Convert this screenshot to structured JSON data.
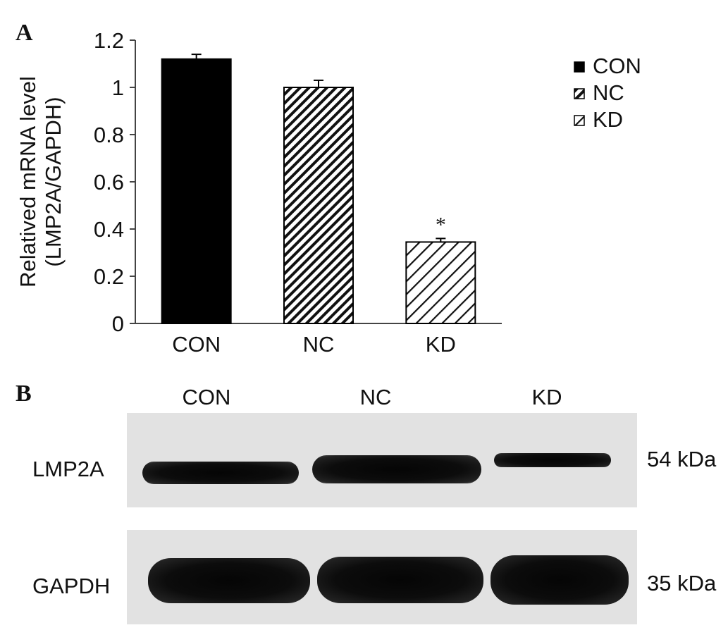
{
  "panel_labels": {
    "a": "A",
    "b": "B"
  },
  "chart_data": {
    "type": "bar",
    "categories": [
      "CON",
      "NC",
      "KD"
    ],
    "values": [
      1.12,
      1.0,
      0.345
    ],
    "errors": [
      0.02,
      0.03,
      0.015
    ],
    "annotations": [
      "",
      "",
      "*"
    ],
    "ylabel_lines": [
      "Relatived mRNA level",
      "(LMP2A/GAPDH)"
    ],
    "xlabel": "",
    "ylim": [
      0,
      1.2
    ],
    "yticks": [
      "0",
      "0.2",
      "0.4",
      "0.6",
      "0.8",
      "1",
      "1.2"
    ],
    "legend": [
      "CON",
      "NC",
      "KD"
    ],
    "legend_position": "top-right",
    "fills": [
      "solid",
      "dense-hatch",
      "sparse-hatch"
    ],
    "colors": {
      "bar_solid": "#000000",
      "hatch": "#111111",
      "axis": "#444444"
    }
  },
  "blot": {
    "lanes": [
      "CON",
      "NC",
      "KD"
    ],
    "rows": [
      {
        "label": "LMP2A",
        "size": "54 kDa"
      },
      {
        "label": "GAPDH",
        "size": "35 kDa"
      }
    ]
  }
}
